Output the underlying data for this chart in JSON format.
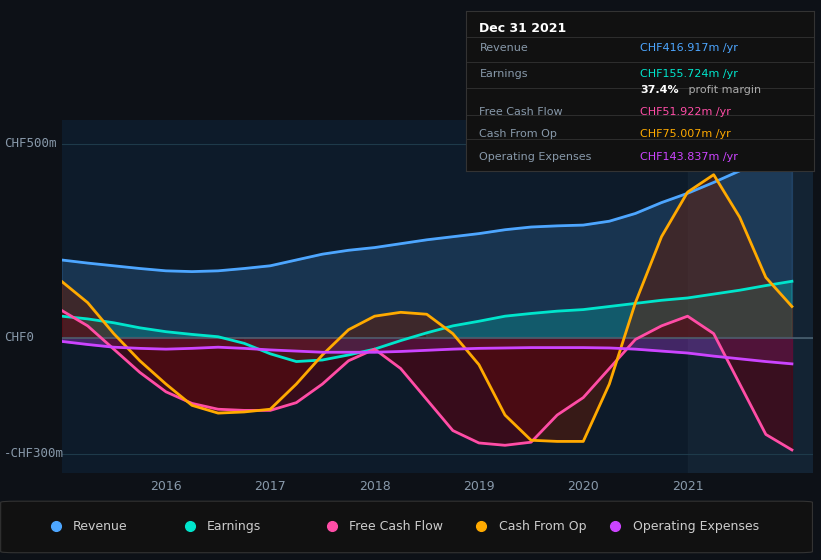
{
  "bg_color": "#0d1117",
  "plot_bg": "#0d1b2a",
  "grid_color": "#1e3a4a",
  "zero_line_color": "#4a6070",
  "title_box": {
    "date": "Dec 31 2021",
    "rows": [
      {
        "label": "Revenue",
        "value": "CHF416.917m /yr",
        "color": "#4da6ff"
      },
      {
        "label": "Earnings",
        "value": "CHF155.724m /yr",
        "color": "#00e5cc"
      },
      {
        "label": "",
        "value": "37.4% profit margin",
        "color": "#ffffff"
      },
      {
        "label": "Free Cash Flow",
        "value": "CHF51.922m /yr",
        "color": "#ff4da6"
      },
      {
        "label": "Cash From Op",
        "value": "CHF75.007m /yr",
        "color": "#ffaa00"
      },
      {
        "label": "Operating Expenses",
        "value": "CHF143.837m /yr",
        "color": "#cc44ff"
      }
    ]
  },
  "series": {
    "x": [
      2015.0,
      2015.25,
      2015.5,
      2015.75,
      2016.0,
      2016.25,
      2016.5,
      2016.75,
      2017.0,
      2017.25,
      2017.5,
      2017.75,
      2018.0,
      2018.25,
      2018.5,
      2018.75,
      2019.0,
      2019.25,
      2019.5,
      2019.75,
      2020.0,
      2020.25,
      2020.5,
      2020.75,
      2021.0,
      2021.25,
      2021.5,
      2021.75,
      2022.0
    ],
    "revenue": [
      200,
      192,
      185,
      178,
      172,
      170,
      172,
      178,
      185,
      200,
      215,
      225,
      232,
      242,
      252,
      260,
      268,
      278,
      285,
      288,
      290,
      300,
      320,
      348,
      372,
      400,
      430,
      458,
      490
    ],
    "earnings": [
      55,
      48,
      38,
      25,
      15,
      8,
      2,
      -15,
      -42,
      -62,
      -58,
      -45,
      -30,
      -8,
      12,
      30,
      42,
      55,
      62,
      68,
      72,
      80,
      88,
      96,
      102,
      112,
      122,
      134,
      145
    ],
    "free_cash": [
      70,
      30,
      -30,
      -90,
      -140,
      -170,
      -185,
      -188,
      -188,
      -168,
      -120,
      -60,
      -30,
      -80,
      -160,
      -240,
      -272,
      -278,
      -270,
      -200,
      -155,
      -80,
      -5,
      30,
      55,
      10,
      -120,
      -250,
      -290
    ],
    "cash_from_op": [
      145,
      90,
      10,
      -60,
      -120,
      -175,
      -195,
      -192,
      -185,
      -120,
      -45,
      20,
      55,
      65,
      60,
      10,
      -70,
      -200,
      -265,
      -268,
      -268,
      -120,
      90,
      260,
      375,
      420,
      310,
      155,
      80
    ],
    "op_expenses": [
      -10,
      -18,
      -25,
      -28,
      -30,
      -28,
      -25,
      -28,
      -32,
      -35,
      -38,
      -38,
      -38,
      -36,
      -33,
      -30,
      -28,
      -27,
      -26,
      -26,
      -26,
      -27,
      -30,
      -35,
      -40,
      -48,
      -55,
      -62,
      -68
    ]
  },
  "colors": {
    "revenue": "#4da6ff",
    "earnings": "#00e5cc",
    "free_cash": "#ff4da6",
    "cash_from_op": "#ffaa00",
    "op_expenses": "#cc44ff"
  },
  "ylim": [
    -350,
    560
  ],
  "xlim": [
    2015.0,
    2022.2
  ],
  "yticks": [
    -300,
    0,
    500
  ],
  "ytick_labels": [
    "-CHF300m",
    "CHF0",
    "CHF500m"
  ],
  "xticks": [
    2016,
    2017,
    2018,
    2019,
    2020,
    2021
  ],
  "highlight_x": 2021.0,
  "legend": [
    {
      "label": "Revenue",
      "color": "#4da6ff"
    },
    {
      "label": "Earnings",
      "color": "#00e5cc"
    },
    {
      "label": "Free Cash Flow",
      "color": "#ff4da6"
    },
    {
      "label": "Cash From Op",
      "color": "#ffaa00"
    },
    {
      "label": "Operating Expenses",
      "color": "#cc44ff"
    }
  ]
}
